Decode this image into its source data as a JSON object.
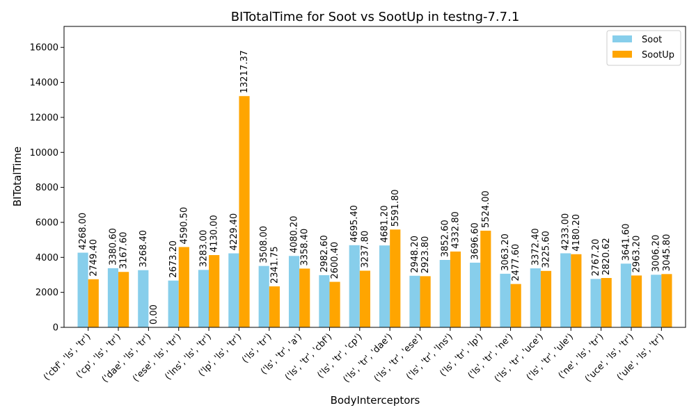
{
  "chart_data": {
    "type": "bar",
    "title": "BITotalTime for Soot vs SootUp in testng-7.7.1",
    "xlabel": "BodyInterceptors",
    "ylabel": "BITotalTime",
    "ylim": [
      0,
      17200
    ],
    "yticks": [
      0,
      2000,
      4000,
      6000,
      8000,
      10000,
      12000,
      14000,
      16000
    ],
    "legend_position": "top-right",
    "categories": [
      "('cbf', 'ls', 'tr')",
      "('cp', 'ls', 'tr')",
      "('dae', 'ls', 'tr')",
      "('ese', 'ls', 'tr')",
      "('lns', 'ls', 'tr')",
      "('lp', 'ls', 'tr')",
      "('ls', 'tr')",
      "('ls', 'tr', 'a')",
      "('ls', 'tr', 'cbf')",
      "('ls', 'tr', 'cp')",
      "('ls', 'tr', 'dae')",
      "('ls', 'tr', 'ese')",
      "('ls', 'tr', 'lns')",
      "('ls', 'tr', 'lp')",
      "('ls', 'tr', 'ne')",
      "('ls', 'tr', 'uce')",
      "('ls', 'tr', 'ule')",
      "('ne', 'ls', 'tr')",
      "('uce', 'ls', 'tr')",
      "('ule', 'ls', 'tr')"
    ],
    "series": [
      {
        "name": "Soot",
        "color": "#87ceeb",
        "values": [
          4268.0,
          3380.6,
          3268.4,
          2673.2,
          3283.0,
          4229.4,
          3508.0,
          4080.2,
          2982.6,
          4695.4,
          4681.2,
          2948.2,
          3852.6,
          3696.6,
          3063.2,
          3372.4,
          4233.0,
          2767.2,
          3641.6,
          3006.2
        ],
        "labels": [
          "4268.00",
          "3380.60",
          "3268.40",
          "2673.20",
          "3283.00",
          "4229.40",
          "3508.00",
          "4080.20",
          "2982.60",
          "4695.40",
          "4681.20",
          "2948.20",
          "3852.60",
          "3696.60",
          "3063.20",
          "3372.40",
          "4233.00",
          "2767.20",
          "3641.60",
          "3006.20"
        ]
      },
      {
        "name": "SootUp",
        "color": "#ffa500",
        "values": [
          2749.4,
          3167.6,
          0.0,
          4590.5,
          4130.0,
          13217.37,
          2341.75,
          3358.4,
          2600.4,
          3237.8,
          5591.8,
          2923.8,
          4332.8,
          5524.0,
          2477.6,
          3225.6,
          4180.2,
          2820.62,
          2963.2,
          3045.8
        ],
        "labels": [
          "2749.40",
          "3167.60",
          "0.00",
          "4590.50",
          "4130.00",
          "13217.37",
          "2341.75",
          "3358.40",
          "2600.40",
          "3237.80",
          "5591.80",
          "2923.80",
          "4332.80",
          "5524.00",
          "2477.60",
          "3225.60",
          "4180.20",
          "2820.62",
          "2963.20",
          "3045.80"
        ]
      }
    ]
  }
}
